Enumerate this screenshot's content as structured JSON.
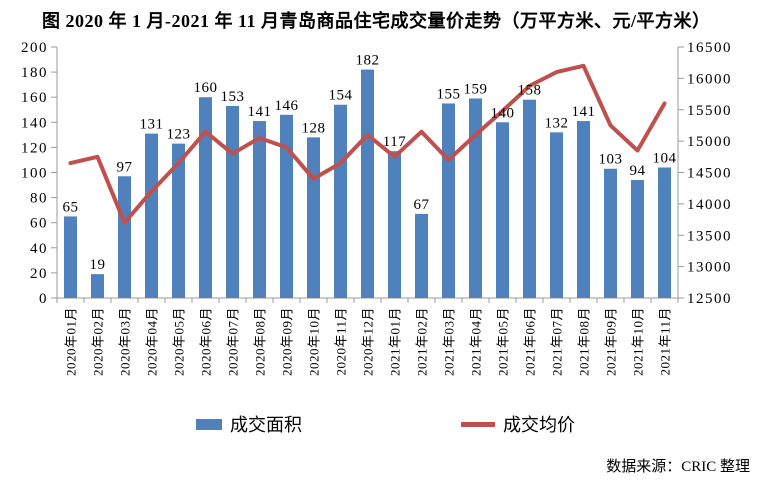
{
  "title": "图  2020 年 1 月-2021 年 11 月青岛商品住宅成交量价走势（万平方米、元/平方米）",
  "source_note": "数据来源：CRIC 整理",
  "colors": {
    "bar": "#4F81BD",
    "line": "#C0504D",
    "axis": "#9B9B9B",
    "text": "#000000",
    "background": "#FFFFFF"
  },
  "chart_data": {
    "type": "combo-bar-line",
    "title": "2020年1月-2021年11月青岛商品住宅成交量价走势（万平方米、元/平方米）",
    "categories": [
      "2020年01月",
      "2020年02月",
      "2020年03月",
      "2020年04月",
      "2020年05月",
      "2020年06月",
      "2020年07月",
      "2020年08月",
      "2020年09月",
      "2020年10月",
      "2020年11月",
      "2020年12月",
      "2021年01月",
      "2021年02月",
      "2021年03月",
      "2021年04月",
      "2021年05月",
      "2021年06月",
      "2021年07月",
      "2021年08月",
      "2021年09月",
      "2021年10月",
      "2021年11月"
    ],
    "series": [
      {
        "name": "成交面积",
        "type": "bar",
        "axis": "left",
        "unit": "万平方米",
        "color": "#4F81BD",
        "values": [
          65,
          19,
          97,
          131,
          123,
          160,
          153,
          141,
          146,
          128,
          154,
          182,
          117,
          67,
          155,
          159,
          140,
          158,
          132,
          141,
          103,
          94,
          104
        ]
      },
      {
        "name": "成交均价",
        "type": "line",
        "axis": "right",
        "unit": "元/平方米",
        "color": "#C0504D",
        "values": [
          14650,
          14750,
          13700,
          14200,
          14650,
          15150,
          14800,
          15050,
          14900,
          14400,
          14650,
          15100,
          14750,
          15150,
          14700,
          15100,
          15480,
          15880,
          16100,
          16200,
          15250,
          14850,
          15600
        ]
      }
    ],
    "left_axis": {
      "min": 0,
      "max": 200,
      "step": 20,
      "ticks": [
        0,
        20,
        40,
        60,
        80,
        100,
        120,
        140,
        160,
        180,
        200
      ]
    },
    "right_axis": {
      "min": 12500,
      "max": 16500,
      "step": 500,
      "ticks": [
        12500,
        13000,
        13500,
        14000,
        14500,
        15000,
        15500,
        16000,
        16500
      ]
    },
    "grid": false,
    "data_labels": true,
    "legend_position": "bottom"
  }
}
